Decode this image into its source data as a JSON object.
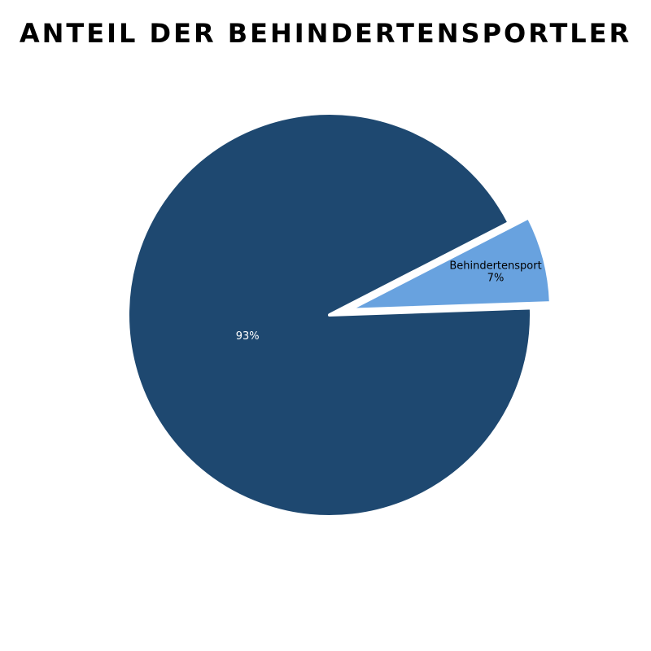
{
  "chart_data": {
    "type": "pie",
    "title": "ANTEIL DER BEHINDERTENSPORTLER",
    "categories": [
      null,
      "Behindertensport"
    ],
    "values": [
      93,
      7
    ],
    "value_labels": [
      "93%",
      "7%"
    ],
    "colors": [
      "#1e4870",
      "#68a2df"
    ]
  }
}
